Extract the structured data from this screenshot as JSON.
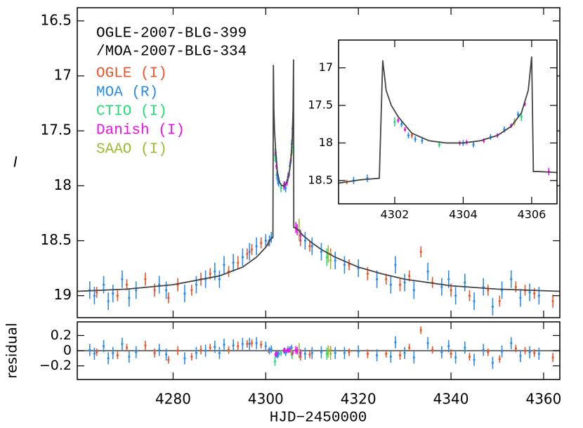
{
  "chart_data": {
    "type": "scatter",
    "title_lines": [
      "OGLE-2007-BLG-399",
      "/MOA-2007-BLG-334"
    ],
    "x_label": "HJD−2450000",
    "y_label": "I",
    "residual_label": "residual",
    "xlim": [
      4259.3,
      4363.5
    ],
    "xticks": [
      4280,
      4300,
      4320,
      4340,
      4360
    ],
    "ylim": [
      16.38,
      19.2
    ],
    "yticks": [
      16.5,
      17,
      17.5,
      18,
      18.5,
      19
    ],
    "y_inverted": true,
    "residual_ylim": [
      -0.38,
      0.38
    ],
    "residual_yticks": [
      {
        "value": -0.2,
        "label": "−0.2"
      },
      0,
      0.2
    ],
    "inset_xlim": [
      4300.36,
      4306.74
    ],
    "inset_xticks": [
      4302,
      4304,
      4306
    ],
    "inset_ylim": [
      16.63,
      18.81
    ],
    "inset_yticks": [
      17,
      17.5,
      18,
      18.5
    ],
    "model": {
      "color": "#444444",
      "x": [
        4259.3,
        4270,
        4280,
        4290,
        4295,
        4298,
        4300,
        4301,
        4301.55,
        4301.65,
        4301.75,
        4301.9,
        4302.1,
        4302.5,
        4303,
        4303.5,
        4304,
        4304.5,
        4305,
        4305.4,
        4305.7,
        4305.9,
        4306.0,
        4306.05,
        4306.2,
        4307,
        4308,
        4310,
        4312,
        4315,
        4320,
        4325,
        4330,
        4340,
        4350,
        4363.5
      ],
      "values": [
        18.96,
        18.94,
        18.9,
        18.82,
        18.74,
        18.65,
        18.56,
        18.49,
        18.47,
        16.9,
        17.3,
        17.5,
        17.65,
        17.87,
        17.97,
        18.0,
        18.0,
        17.97,
        17.9,
        17.78,
        17.6,
        17.3,
        16.85,
        18.38,
        18.38,
        18.4,
        18.45,
        18.52,
        18.58,
        18.65,
        18.74,
        18.8,
        18.85,
        18.91,
        18.94,
        18.96
      ]
    },
    "series": [
      {
        "name": "OGLE (I)",
        "color": "#e8562a",
        "x": [
          4263.5,
          4268,
          4270,
          4274,
          4276,
          4279,
          4281,
          4284,
          4286,
          4288,
          4292,
          4294,
          4296,
          4297,
          4299,
          4300.6,
          4302.5,
          4307.5,
          4309.5,
          4314,
          4318,
          4322,
          4326,
          4329,
          4331,
          4333.5,
          4336,
          4340,
          4344,
          4348,
          4350.5,
          4354,
          4356,
          4358,
          4362
        ],
        "values": [
          18.97,
          19.0,
          18.9,
          18.85,
          18.95,
          19.02,
          18.9,
          18.95,
          18.85,
          18.8,
          18.78,
          18.7,
          18.62,
          18.58,
          18.52,
          18.52,
          17.9,
          18.5,
          18.55,
          18.62,
          18.72,
          18.8,
          18.85,
          18.9,
          18.82,
          18.6,
          18.88,
          18.95,
          19.0,
          18.95,
          19.05,
          18.92,
          18.95,
          18.98,
          19.05
        ],
        "errors": [
          0.05,
          0.05,
          0.05,
          0.06,
          0.06,
          0.05,
          0.06,
          0.05,
          0.06,
          0.05,
          0.05,
          0.06,
          0.05,
          0.05,
          0.05,
          0.03,
          0.04,
          0.05,
          0.05,
          0.05,
          0.05,
          0.06,
          0.05,
          0.06,
          0.05,
          0.05,
          0.05,
          0.06,
          0.05,
          0.05,
          0.05,
          0.05,
          0.05,
          0.05,
          0.06
        ],
        "residuals": [
          -0.02,
          -0.06,
          0.04,
          0.07,
          -0.03,
          -0.12,
          0,
          -0.08,
          0.01,
          0.04,
          0.01,
          0.06,
          0.09,
          0.1,
          0.08,
          0,
          -0.03,
          -0.08,
          -0.05,
          0.01,
          -0.02,
          -0.04,
          -0.04,
          -0.06,
          0.04,
          0.27,
          0.01,
          -0.04,
          -0.08,
          -0.02,
          -0.11,
          0.03,
          0,
          -0.03,
          -0.09
        ]
      },
      {
        "name": "MOA (R)",
        "color": "#2a8ce8",
        "x": [
          4262,
          4263,
          4265,
          4266,
          4267,
          4269,
          4270.5,
          4272,
          4277,
          4278.5,
          4282.5,
          4285,
          4287,
          4289,
          4290,
          4291,
          4293,
          4295,
          4296.5,
          4298,
          4300,
          4300.8,
          4301.2,
          4302.2,
          4302.4,
          4302.6,
          4302.8,
          4304.0,
          4304.3,
          4304.8,
          4305.2,
          4305.6,
          4308.5,
          4310,
          4312,
          4315,
          4317,
          4320,
          4324,
          4327,
          4328,
          4330,
          4332,
          4335,
          4338,
          4339.5,
          4341,
          4343,
          4345,
          4347,
          4349,
          4351,
          4353,
          4355,
          4357,
          4359
        ],
        "values": [
          18.95,
          19.0,
          18.9,
          19.05,
          18.98,
          18.85,
          19.02,
          18.95,
          18.9,
          18.95,
          18.98,
          18.9,
          18.85,
          18.78,
          18.85,
          18.72,
          18.7,
          18.65,
          18.6,
          18.55,
          18.5,
          18.5,
          18.47,
          17.75,
          17.9,
          17.95,
          17.97,
          18.0,
          18.02,
          17.92,
          17.82,
          17.62,
          18.5,
          18.55,
          18.6,
          18.68,
          18.72,
          18.75,
          18.85,
          18.9,
          18.72,
          18.88,
          18.95,
          18.78,
          18.92,
          18.85,
          19.0,
          18.88,
          19.05,
          18.92,
          19.1,
          18.95,
          18.85,
          19.02,
          18.97,
          19.0
        ],
        "errors": [
          0.08,
          0.08,
          0.08,
          0.08,
          0.08,
          0.08,
          0.08,
          0.08,
          0.08,
          0.08,
          0.08,
          0.08,
          0.08,
          0.08,
          0.08,
          0.08,
          0.08,
          0.08,
          0.08,
          0.08,
          0.06,
          0.05,
          0.05,
          0.04,
          0.04,
          0.04,
          0.04,
          0.04,
          0.04,
          0.04,
          0.04,
          0.04,
          0.08,
          0.08,
          0.08,
          0.08,
          0.08,
          0.08,
          0.08,
          0.08,
          0.08,
          0.08,
          0.08,
          0.08,
          0.08,
          0.08,
          0.08,
          0.08,
          0.08,
          0.08,
          0.08,
          0.08,
          0.08,
          0.08,
          0.08,
          0.08
        ],
        "residuals": [
          0.01,
          -0.04,
          0.06,
          -0.1,
          -0.03,
          0.09,
          -0.08,
          -0.02,
          0.01,
          -0.05,
          -0.1,
          -0.03,
          0,
          0.05,
          -0.03,
          0.08,
          0.07,
          0.09,
          0.09,
          0.1,
          0.06,
          0,
          0.02,
          -0.05,
          -0.05,
          -0.06,
          -0.04,
          0,
          -0.03,
          0.02,
          0.02,
          0.04,
          -0.04,
          -0.03,
          -0.02,
          -0.03,
          -0.03,
          -0.01,
          -0.06,
          -0.08,
          0.11,
          -0.03,
          -0.09,
          0.1,
          -0.02,
          0.06,
          -0.09,
          0.04,
          -0.12,
          0.01,
          -0.16,
          -0.01,
          0.1,
          -0.07,
          -0.02,
          -0.04
        ]
      },
      {
        "name": "CTIO (I)",
        "color": "#22dd77",
        "x": [
          4302.0,
          4303.3,
          4305.7,
          4313.2
        ],
        "values": [
          17.72,
          18.02,
          17.65,
          18.65
        ],
        "errors": [
          0.06,
          0.04,
          0.06,
          0.08
        ],
        "residuals": [
          -0.14,
          -0.03,
          -0.05,
          -0.04
        ]
      },
      {
        "name": "Danish (I)",
        "color": "#ee11ee",
        "x": [
          4302.1,
          4302.3,
          4303.9,
          4304.1,
          4304.6,
          4305.0,
          4305.4,
          4305.8,
          4306.5,
          4306.8,
          4307.5
        ],
        "values": [
          17.7,
          17.82,
          18.0,
          17.99,
          17.97,
          17.9,
          17.77,
          17.48,
          18.38,
          18.4,
          18.45
        ],
        "errors": [
          0.03,
          0.03,
          0.03,
          0.03,
          0.03,
          0.03,
          0.03,
          0.03,
          0.05,
          0.05,
          0.05
        ],
        "residuals": [
          -0.05,
          -0.04,
          0,
          0.01,
          0,
          0,
          0.01,
          -0.03,
          0.01,
          0,
          -0.03
        ]
      },
      {
        "name": "SAAO (I)",
        "color": "#99bb33",
        "x": [
          4305.5,
          4307.2,
          4313.5,
          4314.0
        ],
        "values": [
          17.72,
          18.4,
          18.62,
          18.68
        ],
        "errors": [
          0.05,
          0.1,
          0.08,
          0.08
        ],
        "residuals": [
          -0.02,
          0,
          -0.01,
          -0.04
        ]
      }
    ]
  }
}
